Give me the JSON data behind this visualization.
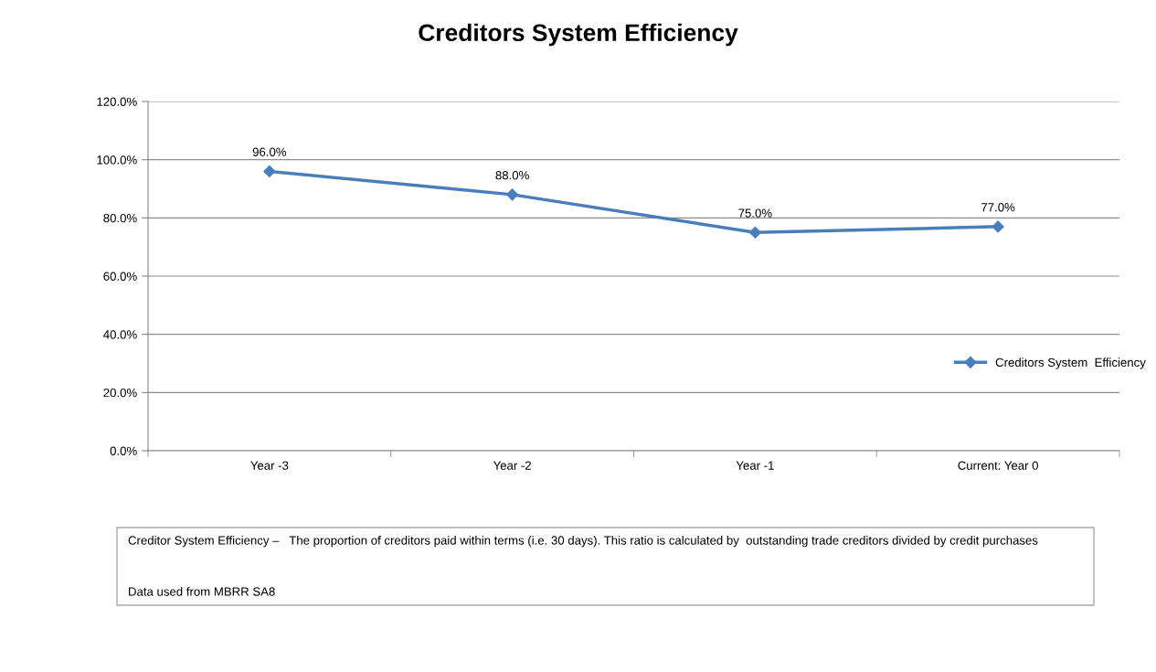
{
  "chart_data": {
    "type": "line",
    "title": "Creditors System Efficiency",
    "categories": [
      "Year -3",
      "Year -2",
      "Year -1",
      "Current: Year 0"
    ],
    "series": [
      {
        "name": "Creditors System  Efficiency",
        "color": "#4a7ebb",
        "values": [
          96,
          88,
          75,
          77
        ],
        "value_labels": [
          "96.0%",
          "88.0%",
          "75.0%",
          "77.0%"
        ]
      }
    ],
    "ylim": [
      0,
      120
    ],
    "yticks": [
      {
        "value": 0,
        "label": "0.0%"
      },
      {
        "value": 20,
        "label": "20.0%"
      },
      {
        "value": 40,
        "label": "40.0%"
      },
      {
        "value": 60,
        "label": "60.0%"
      },
      {
        "value": 80,
        "label": "80.0%"
      },
      {
        "value": 100,
        "label": "100.0%"
      },
      {
        "value": 120,
        "label": "120.0%"
      }
    ],
    "grid": "y",
    "legend": "right",
    "marker": "diamond",
    "line_style": "solid",
    "annotations": [
      "Creditor System Efficiency –   The proportion of creditors paid within terms (i.e. 30 days). This ratio is calculated by  outstanding trade creditors divided by credit purchases",
      "Data used from MBRR SA8"
    ]
  }
}
